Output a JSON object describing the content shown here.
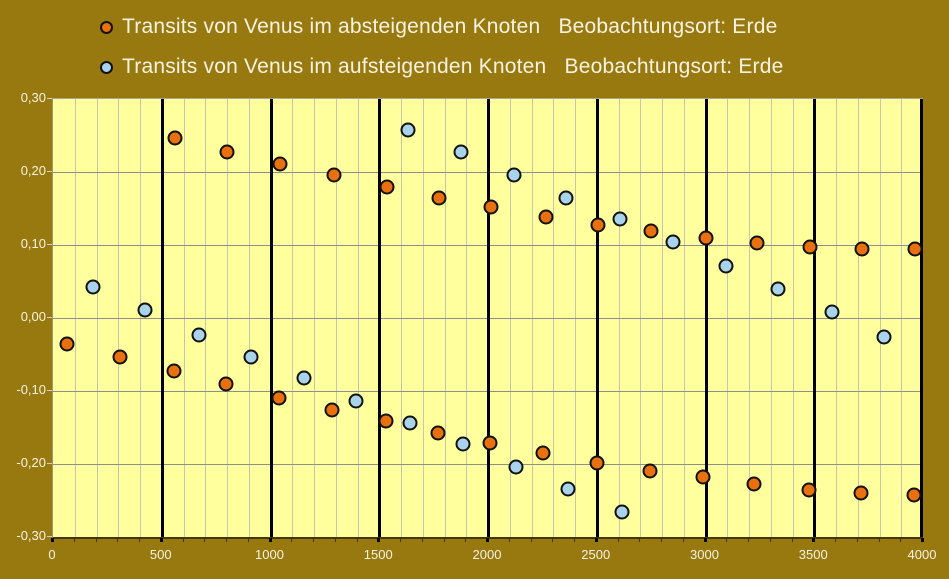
{
  "colors": {
    "canvas_bg": "#98790f",
    "plot_bg": "#ffff9e",
    "grid_minor_v": "#c6c6ae",
    "grid_major_h": "#8f8f8f",
    "heavy_line": "#000000",
    "descending_fill": "#e8700e",
    "ascending_fill": "#a9d3ea",
    "label_text": "#f7f3e2",
    "tick_mark": "#d8d0b0",
    "bottom_tick": "#3c3414"
  },
  "legend": {
    "items": [
      {
        "label": "Transits von Venus im absteigenden Knoten   Beobachtungsort: Erde",
        "marker": "orange-dot"
      },
      {
        "label": "Transits von Venus im aufsteigenden Knoten   Beobachtungsort: Erde",
        "marker": "blue-dot"
      }
    ]
  },
  "chart_data": {
    "type": "scatter",
    "xlabel": "",
    "ylabel": "",
    "xlim": [
      0,
      4000
    ],
    "ylim": [
      -0.3,
      0.3
    ],
    "x_minor_step": 100,
    "x_heavy_step": 500,
    "x_ticks": [
      {
        "u": 0,
        "label": "0"
      },
      {
        "u": 500,
        "label": "500"
      },
      {
        "u": 1000,
        "label": "1000"
      },
      {
        "u": 1500,
        "label": "1500"
      },
      {
        "u": 2000,
        "label": "2000"
      },
      {
        "u": 2500,
        "label": "2500"
      },
      {
        "u": 3000,
        "label": "3000"
      },
      {
        "u": 3500,
        "label": "3500"
      },
      {
        "u": 4000,
        "label": "4000"
      }
    ],
    "y_ticks": [
      {
        "v": 0.3,
        "label": "0,30"
      },
      {
        "v": 0.2,
        "label": "0,20"
      },
      {
        "v": 0.1,
        "label": "0,10"
      },
      {
        "v": 0.0,
        "label": "0,00"
      },
      {
        "v": -0.1,
        "label": "-0,10"
      },
      {
        "v": -0.2,
        "label": "-0,20"
      },
      {
        "v": -0.3,
        "label": "-0,30"
      }
    ],
    "grid_h_values": [
      0.2,
      0.1,
      0.0,
      -0.1,
      -0.2
    ],
    "series": [
      {
        "name": "Transits von Venus im absteigenden Knoten",
        "color_key": "descending_fill",
        "points": [
          [
            65,
            -0.035
          ],
          [
            310,
            -0.054
          ],
          [
            555,
            -0.072
          ],
          [
            560,
            0.247
          ],
          [
            795,
            -0.09
          ],
          [
            800,
            0.228
          ],
          [
            1040,
            -0.109
          ],
          [
            1045,
            0.211
          ],
          [
            1285,
            -0.126
          ],
          [
            1290,
            0.196
          ],
          [
            1530,
            -0.141
          ],
          [
            1535,
            0.179
          ],
          [
            1770,
            -0.157
          ],
          [
            1775,
            0.165
          ],
          [
            2010,
            -0.171
          ],
          [
            2015,
            0.152
          ],
          [
            2255,
            -0.185
          ],
          [
            2265,
            0.139
          ],
          [
            2500,
            -0.198
          ],
          [
            2505,
            0.128
          ],
          [
            2745,
            -0.209
          ],
          [
            2750,
            0.119
          ],
          [
            2990,
            -0.218
          ],
          [
            3000,
            0.11
          ],
          [
            3225,
            -0.228
          ],
          [
            3235,
            0.103
          ],
          [
            3475,
            -0.235
          ],
          [
            3480,
            0.097
          ],
          [
            3715,
            -0.24
          ],
          [
            3720,
            0.095
          ],
          [
            3960,
            -0.243
          ],
          [
            3965,
            0.094
          ]
        ]
      },
      {
        "name": "Transits von Venus im aufsteigenden Knoten",
        "color_key": "ascending_fill",
        "points": [
          [
            185,
            0.042
          ],
          [
            425,
            0.011
          ],
          [
            670,
            -0.023
          ],
          [
            910,
            -0.053
          ],
          [
            1155,
            -0.082
          ],
          [
            1395,
            -0.114
          ],
          [
            1630,
            0.258
          ],
          [
            1640,
            -0.144
          ],
          [
            1875,
            0.227
          ],
          [
            1885,
            -0.173
          ],
          [
            2120,
            0.196
          ],
          [
            2130,
            -0.204
          ],
          [
            2360,
            0.165
          ],
          [
            2370,
            -0.234
          ],
          [
            2605,
            0.135
          ],
          [
            2615,
            -0.266
          ],
          [
            2850,
            0.104
          ],
          [
            3095,
            0.071
          ],
          [
            3335,
            0.04
          ],
          [
            3580,
            0.008
          ],
          [
            3820,
            -0.026
          ]
        ]
      }
    ]
  }
}
